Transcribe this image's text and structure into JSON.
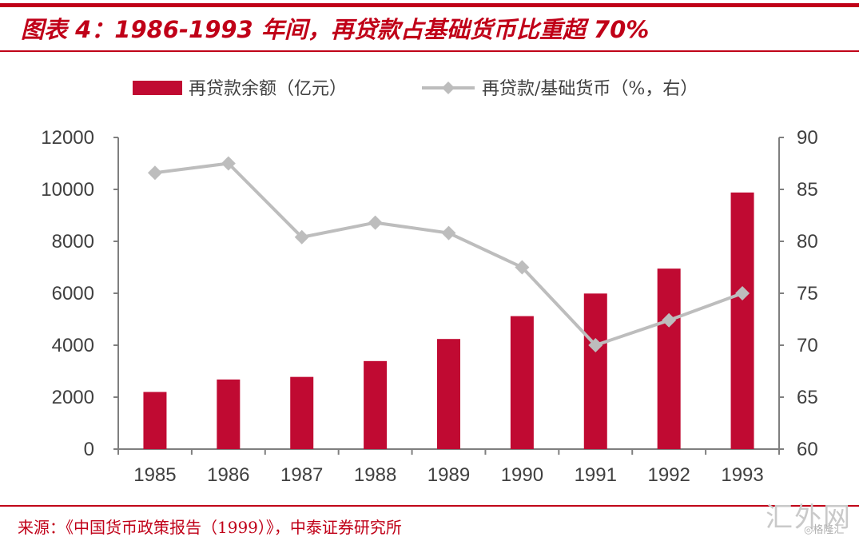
{
  "title": "图表 4：1986-1993 年间，再贷款占基础货币比重超 70%",
  "source": "来源：《中国货币政策报告（1999）》，中泰证券研究所",
  "watermark": {
    "main": "汇外网",
    "small": "◎格隆汇"
  },
  "colors": {
    "brand": "#c00018",
    "bar": "#c00a32",
    "line": "#bdbdbd",
    "axis": "#7f7f7f",
    "text": "#404040"
  },
  "chart_data": {
    "type": "bar",
    "categories": [
      "1985",
      "1986",
      "1987",
      "1988",
      "1989",
      "1990",
      "1991",
      "1992",
      "1993"
    ],
    "series": [
      {
        "name": "再贷款余额（亿元）",
        "type": "bar",
        "axis": "left",
        "values": [
          2200,
          2680,
          2780,
          3390,
          4240,
          5120,
          5990,
          6950,
          9880
        ]
      },
      {
        "name": "再贷款/基础货币（%，右）",
        "type": "line",
        "axis": "right",
        "marker": "diamond",
        "values": [
          86.6,
          87.5,
          80.4,
          81.8,
          80.8,
          77.5,
          70.0,
          72.4,
          75.0
        ]
      }
    ],
    "y_left": {
      "lim": [
        0,
        12000
      ],
      "ticks": [
        "0",
        "2000",
        "4000",
        "6000",
        "8000",
        "10000",
        "12000"
      ]
    },
    "y_right": {
      "lim": [
        60,
        90
      ],
      "ticks": [
        "60",
        "65",
        "70",
        "75",
        "80",
        "85",
        "90"
      ]
    },
    "legend_position": "top",
    "grid": false
  }
}
